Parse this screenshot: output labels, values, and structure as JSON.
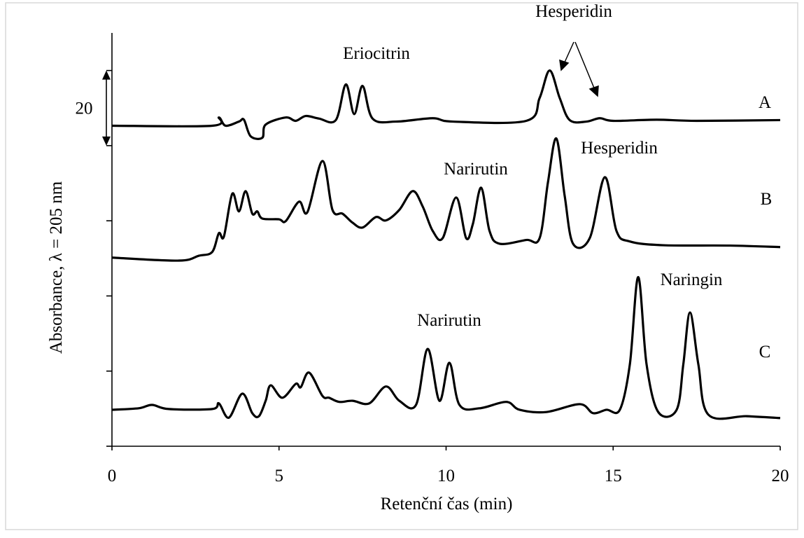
{
  "chart_data": {
    "type": "line",
    "xlabel": "Retenční čas (min)",
    "ylabel": "Absorbance, λ = 205 nm",
    "xlim": [
      0,
      20
    ],
    "xticks": [
      0,
      5,
      10,
      15,
      20
    ],
    "ylim": [
      0,
      110
    ],
    "yticks": [
      0,
      20,
      40,
      60,
      80,
      100
    ],
    "scale_bar": 20,
    "annotations": [
      "Eriocitrin",
      "Hesperidin",
      "Narirutin",
      "Hesperidin",
      "Narirutin",
      "Naringin"
    ],
    "series": [
      {
        "name": "A",
        "color": "#000000",
        "x": [
          0,
          3.0,
          3.2,
          3.4,
          3.8,
          3.95,
          4.15,
          4.5,
          4.6,
          5.2,
          5.5,
          5.8,
          6.2,
          6.7,
          7.0,
          7.25,
          7.5,
          7.8,
          8.5,
          9.6,
          10.2,
          12.4,
          12.8,
          13.1,
          13.4,
          13.7,
          14.2,
          14.6,
          15.0,
          16.3,
          17.5,
          20
        ],
        "values": [
          85.3,
          85.3,
          87.5,
          85.3,
          86.4,
          86.9,
          82.5,
          82.1,
          85.6,
          87.5,
          86.6,
          87.9,
          87.2,
          86.8,
          96.3,
          88.4,
          95.9,
          87.2,
          86.4,
          87.3,
          86.4,
          86.6,
          92.7,
          100.0,
          92.7,
          86.8,
          86.4,
          87.3,
          86.6,
          86.9,
          86.6,
          86.8
        ]
      },
      {
        "name": "B",
        "color": "#000000",
        "x": [
          0,
          2.0,
          2.6,
          3.0,
          3.2,
          3.35,
          3.6,
          3.8,
          4.0,
          4.2,
          4.35,
          4.5,
          5.0,
          5.2,
          5.6,
          5.85,
          6.3,
          6.6,
          6.9,
          7.2,
          7.5,
          7.9,
          8.2,
          8.6,
          9.0,
          9.3,
          9.6,
          9.9,
          10.3,
          10.6,
          10.8,
          11.05,
          11.3,
          11.6,
          12.4,
          12.8,
          13.05,
          13.3,
          13.55,
          13.8,
          14.3,
          14.75,
          15.1,
          15.5,
          16.5,
          18.5,
          20
        ],
        "values": [
          50.2,
          49.4,
          50.7,
          51.7,
          56.7,
          55.8,
          67.2,
          62.5,
          67.9,
          61.9,
          62.5,
          60.6,
          60.4,
          59.9,
          65.1,
          62.3,
          75.9,
          62.9,
          61.9,
          59.5,
          58.2,
          61.0,
          60.1,
          62.9,
          67.9,
          63.8,
          57.3,
          55.4,
          66.2,
          55.4,
          59.1,
          68.8,
          57.3,
          53.9,
          54.9,
          55.4,
          70.3,
          81.9,
          66.6,
          53.9,
          55.4,
          71.6,
          57.3,
          54.5,
          53.5,
          53.4,
          53.0
        ]
      },
      {
        "name": "C",
        "color": "#000000",
        "x": [
          0,
          0.8,
          1.2,
          1.7,
          3.0,
          3.2,
          3.5,
          3.9,
          4.2,
          4.4,
          4.6,
          4.75,
          5.1,
          5.5,
          5.65,
          5.9,
          6.3,
          6.5,
          6.8,
          7.2,
          7.7,
          8.2,
          8.6,
          9.1,
          9.45,
          9.8,
          10.1,
          10.4,
          11.0,
          11.8,
          12.2,
          13.0,
          14.0,
          14.4,
          14.8,
          15.2,
          15.5,
          15.75,
          16.0,
          16.35,
          16.9,
          17.1,
          17.3,
          17.55,
          17.85,
          19.0,
          20
        ],
        "values": [
          9.7,
          10.1,
          11.0,
          9.9,
          9.9,
          11.4,
          7.6,
          14.0,
          8.8,
          8.0,
          12.1,
          16.2,
          12.9,
          16.6,
          15.7,
          19.6,
          13.4,
          12.9,
          11.8,
          12.1,
          11.4,
          15.9,
          12.1,
          11.0,
          25.9,
          12.1,
          22.2,
          11.0,
          10.1,
          11.8,
          9.7,
          9.1,
          11.2,
          8.8,
          9.7,
          9.7,
          21.8,
          45.0,
          21.8,
          9.1,
          9.7,
          21.8,
          35.6,
          21.8,
          8.4,
          8.0,
          7.5
        ]
      }
    ]
  }
}
